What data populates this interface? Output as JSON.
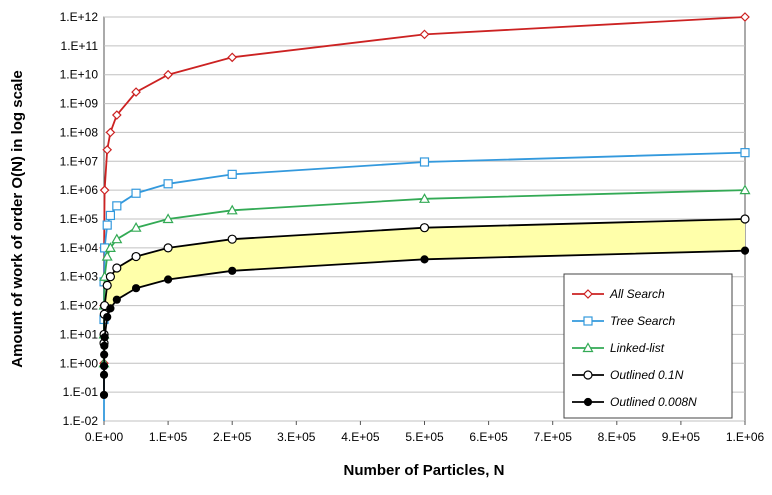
{
  "chart_data": {
    "type": "line",
    "title": "",
    "xlabel": "Number of Particles, N",
    "ylabel": "Amount of work of order O(N) in log scale",
    "xlim": [
      0,
      1000000
    ],
    "ylim": [
      0.01,
      1000000000000
    ],
    "y_scale": "log",
    "grid": "horizontal major lines",
    "legend_position": "lower-right",
    "x_ticks": [
      "0.E+00",
      "1.E+05",
      "2.E+05",
      "3.E+05",
      "4.E+05",
      "5.E+05",
      "6.E+05",
      "7.E+05",
      "8.E+05",
      "9.E+05",
      "1.E+06"
    ],
    "y_ticks": [
      "1.E-02",
      "1.E-01",
      "1.E+00",
      "1.E+01",
      "1.E+02",
      "1.E+03",
      "1.E+04",
      "1.E+05",
      "1.E+06",
      "1.E+07",
      "1.E+08",
      "1.E+09",
      "1.E+10",
      "1.E+11",
      "1.E+12"
    ],
    "shaded_region": {
      "between": [
        "Outlined 0.1N",
        "Outlined 0.008N"
      ],
      "color": "#ffffaa"
    },
    "series": [
      {
        "name": "All Search",
        "color": "#cc2222",
        "marker": "diamond-open",
        "x": [
          1,
          10,
          100,
          1000,
          5000,
          10000,
          20000,
          50000,
          100000,
          200000,
          500000,
          1000000
        ],
        "y": [
          1,
          100,
          10000,
          1000000,
          25000000,
          100000000,
          400000000,
          2500000000,
          10000000000,
          40000000000,
          250000000000,
          1000000000000
        ]
      },
      {
        "name": "Tree Search",
        "color": "#3399dd",
        "marker": "square-open",
        "x": [
          1,
          10,
          100,
          1000,
          5000,
          10000,
          20000,
          50000,
          100000,
          200000,
          500000,
          1000000
        ],
        "y": [
          0,
          33,
          664,
          9966,
          61440,
          132877,
          285754,
          780482,
          1660964,
          3521928,
          9465784,
          19931569
        ]
      },
      {
        "name": "Linked-list",
        "color": "#33aa55",
        "marker": "triangle-open",
        "x": [
          1,
          10,
          100,
          1000,
          5000,
          10000,
          20000,
          50000,
          100000,
          200000,
          500000,
          1000000
        ],
        "y": [
          1,
          10,
          100,
          1000,
          5000,
          10000,
          20000,
          50000,
          100000,
          200000,
          500000,
          1000000
        ]
      },
      {
        "name": "Outlined 0.1N",
        "color": "#000000",
        "marker": "circle-open",
        "x": [
          50,
          100,
          500,
          1000,
          5000,
          10000,
          20000,
          50000,
          100000,
          200000,
          500000,
          1000000
        ],
        "y": [
          5,
          10,
          50,
          100,
          500,
          1000,
          2000,
          5000,
          10000,
          20000,
          50000,
          100000
        ]
      },
      {
        "name": "Outlined 0.008N",
        "color": "#000000",
        "marker": "circle-filled",
        "x": [
          10,
          50,
          100,
          250,
          500,
          1000,
          5000,
          10000,
          20000,
          50000,
          100000,
          200000,
          500000,
          1000000
        ],
        "y": [
          0.08,
          0.4,
          0.8,
          2,
          4,
          8,
          40,
          80,
          160,
          400,
          800,
          1600,
          4000,
          8000
        ]
      }
    ]
  }
}
